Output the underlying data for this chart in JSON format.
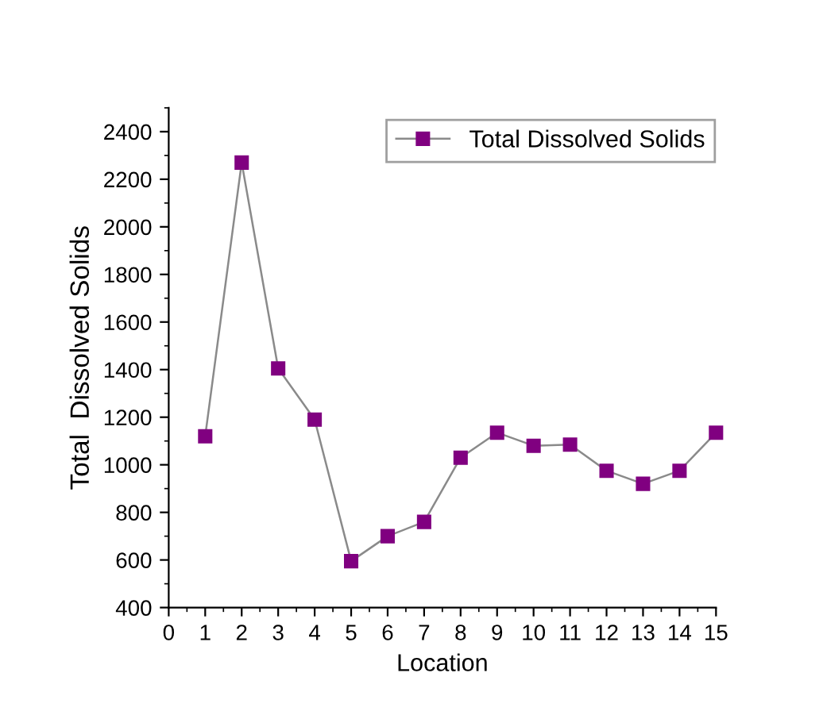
{
  "chart_data": {
    "type": "line",
    "xlabel": "Location",
    "ylabel": "Total  Dissolved Solids",
    "x": [
      1,
      2,
      3,
      4,
      5,
      6,
      7,
      8,
      9,
      10,
      11,
      12,
      13,
      14,
      15
    ],
    "series": [
      {
        "name": "Total Dissolved Solids",
        "color": "#800080",
        "values": [
          1120,
          2270,
          1405,
          1190,
          595,
          700,
          760,
          1030,
          1135,
          1080,
          1085,
          975,
          920,
          975,
          1135
        ]
      }
    ],
    "xlim": [
      0,
      15
    ],
    "xticks": [
      0,
      1,
      2,
      3,
      4,
      5,
      6,
      7,
      8,
      9,
      10,
      11,
      12,
      13,
      14,
      15
    ],
    "ylim": [
      400,
      2500
    ],
    "yticks": [
      400,
      600,
      800,
      1000,
      1200,
      1400,
      1600,
      1800,
      2000,
      2200,
      2400
    ],
    "marker": "square",
    "line_style": "solid",
    "grid": false,
    "legend": "top right"
  }
}
